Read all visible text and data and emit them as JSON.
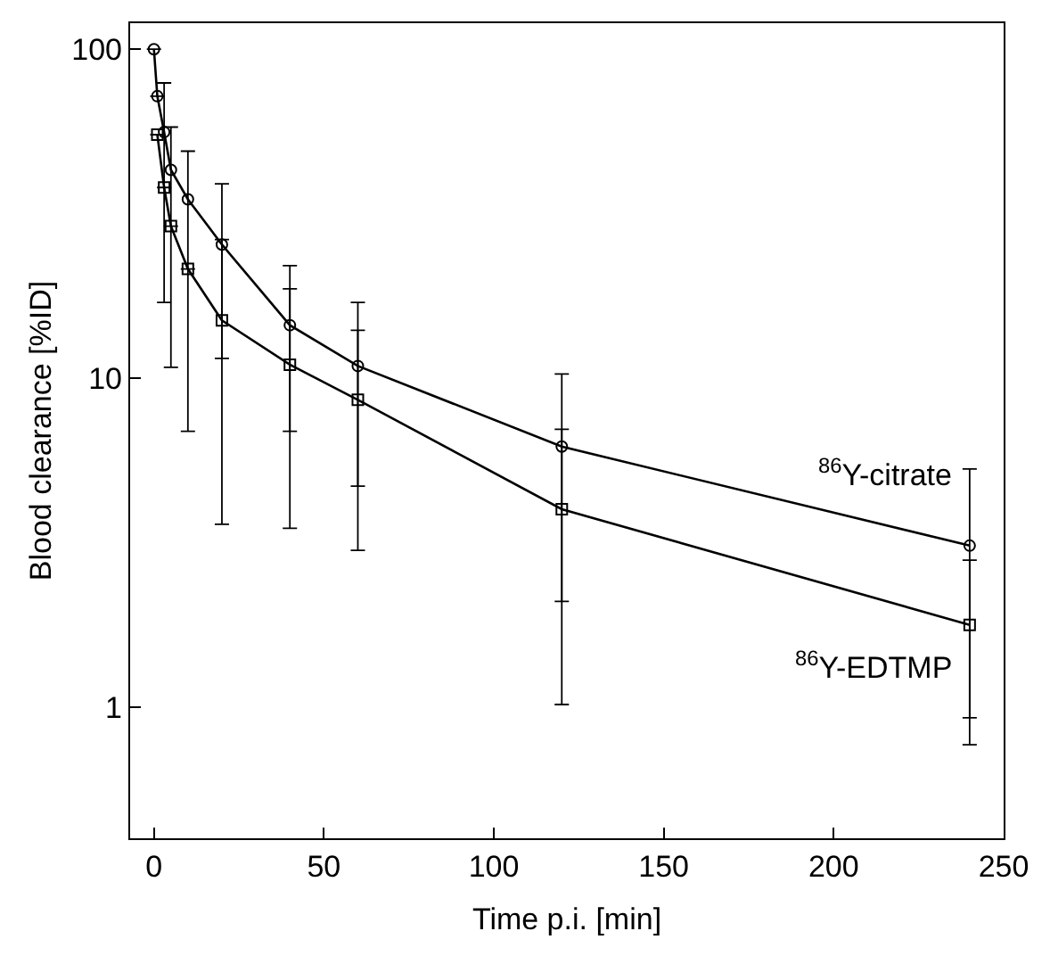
{
  "chart_data": {
    "type": "line",
    "xlabel": "Time p.i. [min]",
    "ylabel": "Blood clearance [%ID]",
    "log": "y",
    "line_style": "solid",
    "legend": false,
    "xlim": [
      -7,
      250
    ],
    "xticks": [
      0,
      50,
      100,
      150,
      200,
      250
    ],
    "ylim": [
      0.4,
      120
    ],
    "yticks": [
      1,
      10,
      100
    ],
    "series": [
      {
        "name": "$^{86}$Y-citrate",
        "color": "#000000",
        "marker": "circle",
        "x": [
          0,
          1,
          3,
          5,
          10,
          20,
          40,
          60,
          120,
          240
        ],
        "values": [
          100,
          72,
          56,
          43,
          35,
          25.5,
          14.5,
          10.9,
          6.2,
          3.1
        ],
        "errors": [
          null,
          null,
          [
            17,
            79
          ],
          [
            10.8,
            58
          ],
          [
            6.9,
            49
          ],
          [
            11.5,
            39
          ],
          [
            6.9,
            22
          ],
          [
            4.7,
            17
          ],
          [
            2.1,
            10.3
          ],
          [
            0.93,
            5.3
          ]
        ]
      },
      {
        "name": "$^{86}$Y-EDTMP",
        "color": "#000000",
        "marker": "square",
        "x": [
          1,
          3,
          5,
          10,
          20,
          40,
          60,
          120,
          240
        ],
        "values": [
          55,
          38,
          29,
          21.5,
          15,
          11,
          8.6,
          4.0,
          1.78
        ],
        "errors": [
          null,
          null,
          null,
          null,
          [
            3.6,
            26.4
          ],
          [
            3.5,
            18.7
          ],
          [
            3.0,
            14
          ],
          [
            1.02,
            7.0
          ],
          [
            0.77,
            2.8
          ]
        ]
      }
    ]
  }
}
